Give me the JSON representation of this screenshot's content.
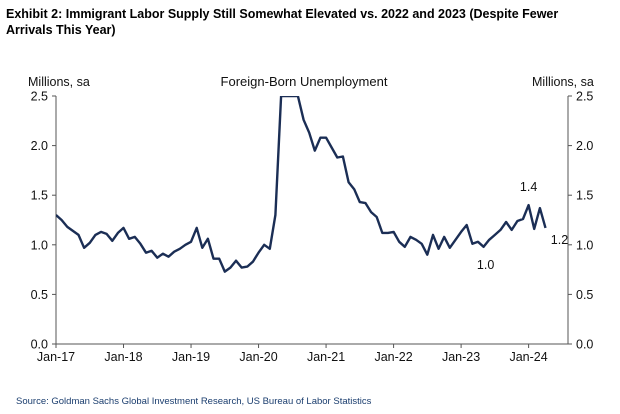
{
  "exhibit_title": "Exhibit 2: Immigrant Labor Supply Still Somewhat Elevated vs. 2022 and 2023 (Despite Fewer Arrivals This Year)",
  "source": "Source: Goldman Sachs Global Investment Research, US Bureau of Labor Statistics",
  "chart_data": {
    "type": "line",
    "title": "Foreign-Born Unemployment",
    "ylabel_left": "Millions, sa",
    "ylabel_right": "Millions, sa",
    "ylim": [
      0.0,
      2.5
    ],
    "yticks": [
      "0.0",
      "0.5",
      "1.0",
      "1.5",
      "2.0",
      "2.5"
    ],
    "xlim": [
      "2017-01",
      "2024-08"
    ],
    "xticks": [
      {
        "date": "2017-01",
        "label": "Jan-17"
      },
      {
        "date": "2018-01",
        "label": "Jan-18"
      },
      {
        "date": "2019-01",
        "label": "Jan-19"
      },
      {
        "date": "2020-01",
        "label": "Jan-20"
      },
      {
        "date": "2021-01",
        "label": "Jan-21"
      },
      {
        "date": "2022-01",
        "label": "Jan-22"
      },
      {
        "date": "2023-01",
        "label": "Jan-23"
      },
      {
        "date": "2024-01",
        "label": "Jan-24"
      }
    ],
    "line_color": "#1b2e55",
    "grid": false,
    "series": [
      {
        "values": [
          [
            "2017-01",
            1.3
          ],
          [
            "2017-02",
            1.25
          ],
          [
            "2017-03",
            1.18
          ],
          [
            "2017-04",
            1.14
          ],
          [
            "2017-05",
            1.1
          ],
          [
            "2017-06",
            0.97
          ],
          [
            "2017-07",
            1.02
          ],
          [
            "2017-08",
            1.1
          ],
          [
            "2017-09",
            1.13
          ],
          [
            "2017-10",
            1.11
          ],
          [
            "2017-11",
            1.04
          ],
          [
            "2017-12",
            1.12
          ],
          [
            "2018-01",
            1.17
          ],
          [
            "2018-02",
            1.06
          ],
          [
            "2018-03",
            1.08
          ],
          [
            "2018-04",
            1.01
          ],
          [
            "2018-05",
            0.92
          ],
          [
            "2018-06",
            0.94
          ],
          [
            "2018-07",
            0.87
          ],
          [
            "2018-08",
            0.91
          ],
          [
            "2018-09",
            0.88
          ],
          [
            "2018-10",
            0.93
          ],
          [
            "2018-11",
            0.96
          ],
          [
            "2018-12",
            1.0
          ],
          [
            "2019-01",
            1.03
          ],
          [
            "2019-02",
            1.17
          ],
          [
            "2019-03",
            0.97
          ],
          [
            "2019-04",
            1.06
          ],
          [
            "2019-05",
            0.86
          ],
          [
            "2019-06",
            0.86
          ],
          [
            "2019-07",
            0.73
          ],
          [
            "2019-08",
            0.77
          ],
          [
            "2019-09",
            0.84
          ],
          [
            "2019-10",
            0.77
          ],
          [
            "2019-11",
            0.78
          ],
          [
            "2019-12",
            0.83
          ],
          [
            "2020-01",
            0.92
          ],
          [
            "2020-02",
            1.0
          ],
          [
            "2020-03",
            0.96
          ],
          [
            "2020-04",
            1.3
          ],
          [
            "2020-05",
            2.5
          ],
          [
            "2020-08",
            2.5
          ],
          [
            "2020-09",
            2.26
          ],
          [
            "2020-10",
            2.13
          ],
          [
            "2020-11",
            1.95
          ],
          [
            "2020-12",
            2.08
          ],
          [
            "2021-01",
            2.08
          ],
          [
            "2021-02",
            1.98
          ],
          [
            "2021-03",
            1.88
          ],
          [
            "2021-04",
            1.89
          ],
          [
            "2021-05",
            1.63
          ],
          [
            "2021-06",
            1.56
          ],
          [
            "2021-07",
            1.43
          ],
          [
            "2021-08",
            1.42
          ],
          [
            "2021-09",
            1.33
          ],
          [
            "2021-10",
            1.28
          ],
          [
            "2021-11",
            1.12
          ],
          [
            "2021-12",
            1.12
          ],
          [
            "2022-01",
            1.13
          ],
          [
            "2022-02",
            1.03
          ],
          [
            "2022-03",
            0.98
          ],
          [
            "2022-04",
            1.08
          ],
          [
            "2022-05",
            1.05
          ],
          [
            "2022-06",
            1.01
          ],
          [
            "2022-07",
            0.9
          ],
          [
            "2022-08",
            1.1
          ],
          [
            "2022-09",
            0.96
          ],
          [
            "2022-10",
            1.08
          ],
          [
            "2022-11",
            0.97
          ],
          [
            "2022-12",
            1.05
          ],
          [
            "2023-01",
            1.13
          ],
          [
            "2023-02",
            1.2
          ],
          [
            "2023-03",
            1.01
          ],
          [
            "2023-04",
            1.03
          ],
          [
            "2023-05",
            0.98
          ],
          [
            "2023-06",
            1.05
          ],
          [
            "2023-07",
            1.1
          ],
          [
            "2023-08",
            1.15
          ],
          [
            "2023-09",
            1.23
          ],
          [
            "2023-10",
            1.15
          ],
          [
            "2023-11",
            1.24
          ],
          [
            "2023-12",
            1.26
          ],
          [
            "2024-01",
            1.4
          ],
          [
            "2024-02",
            1.16
          ],
          [
            "2024-03",
            1.37
          ],
          [
            "2024-04",
            1.17
          ]
        ]
      }
    ],
    "annotations": [
      {
        "text": "1.4",
        "date": "2024-01",
        "value": 1.4
      },
      {
        "text": "1.0",
        "date": "2023-05",
        "value": 0.98
      },
      {
        "text": "1.2",
        "date": "2024-04",
        "value": 1.17
      }
    ]
  }
}
